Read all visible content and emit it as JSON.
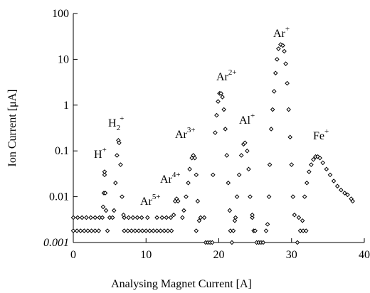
{
  "chart_data": {
    "type": "scatter",
    "xlabel": "Analysing Magnet Current [A]",
    "ylabel": "Ion Current [μA]",
    "ylog": true,
    "xlim": [
      0,
      40
    ],
    "ylim": [
      0.001,
      100
    ],
    "xticks": [
      0,
      10,
      20,
      30,
      40
    ],
    "yticks": [
      0.001,
      0.01,
      0.1,
      1,
      10,
      100
    ],
    "color": "#000000",
    "annotations": [
      {
        "text": "H",
        "sup": "+"
      },
      {
        "text": "H",
        "sub": "2",
        "sup": "+"
      },
      {
        "text": "Ar",
        "sup": "5+"
      },
      {
        "text": "Ar",
        "sup": "4+"
      },
      {
        "text": "Ar",
        "sup": "3+"
      },
      {
        "text": "Ar",
        "sup": "2+"
      },
      {
        "text": "Al",
        "sup": "+"
      },
      {
        "text": "Ar",
        "sup": "+"
      },
      {
        "text": "Fe",
        "sup": "+"
      }
    ],
    "x": [
      0,
      0.5,
      1,
      1.5,
      2,
      2.5,
      3,
      3.5,
      4.7,
      7,
      7.5,
      8,
      8.5,
      9,
      9.5,
      10,
      10.5,
      11,
      11.5,
      12,
      12.5,
      13,
      13.5,
      16.9,
      21.6,
      22,
      24.8,
      25,
      26.5,
      31.2,
      31.6,
      32,
      0,
      0.6,
      1.2,
      1.8,
      2.4,
      3,
      3.6,
      5,
      5.4,
      7,
      7.6,
      8.2,
      8.8,
      9.4,
      10.2,
      11.5,
      12.2,
      12.8,
      13.4,
      15,
      17.5,
      18,
      22.3,
      24.6,
      31,
      18.2,
      18.5,
      18.8,
      19.1,
      21.8,
      25.2,
      25.5,
      25.8,
      26.1,
      30.8,
      4.0,
      4.1,
      4.2,
      4.3,
      4.3,
      4.4,
      4.5,
      5.6,
      5.8,
      6.0,
      6.2,
      6.3,
      6.5,
      6.7,
      6.9,
      13.8,
      14.0,
      14.2,
      14.4,
      15.2,
      15.5,
      15.8,
      16.0,
      16.3,
      16.5,
      16.7,
      16.9,
      17.1,
      17.3,
      19.2,
      19.5,
      19.7,
      19.9,
      20.1,
      20.3,
      20.5,
      20.7,
      20.9,
      21.1,
      21.3,
      21.5,
      22.2,
      22.5,
      22.8,
      23.1,
      23.4,
      23.6,
      23.9,
      24.1,
      24.3,
      24.6,
      26.7,
      26.9,
      27.0,
      27.2,
      27.4,
      27.6,
      27.8,
      28.0,
      28.2,
      28.5,
      28.8,
      29.0,
      29.2,
      29.4,
      29.6,
      29.8,
      30.0,
      30.2,
      30.4,
      31.5,
      31.8,
      32.1,
      32.4,
      32.7,
      33.0,
      33.3,
      33.6,
      33.9,
      34.3,
      34.8,
      35.3,
      35.8,
      36.3,
      36.8,
      37.3,
      37.7,
      38.2,
      38.4
    ],
    "values": [
      0.0018,
      0.0018,
      0.0018,
      0.0018,
      0.0018,
      0.0018,
      0.0018,
      0.0018,
      0.0018,
      0.0018,
      0.0018,
      0.0018,
      0.0018,
      0.0018,
      0.0018,
      0.0018,
      0.0018,
      0.0018,
      0.0018,
      0.0018,
      0.0018,
      0.0018,
      0.0018,
      0.0018,
      0.0018,
      0.0018,
      0.0018,
      0.0018,
      0.0018,
      0.0018,
      0.0018,
      0.0018,
      0.0035,
      0.0035,
      0.0035,
      0.0035,
      0.0035,
      0.0035,
      0.0035,
      0.0035,
      0.0035,
      0.0035,
      0.0035,
      0.0035,
      0.0035,
      0.0035,
      0.0035,
      0.0035,
      0.0035,
      0.0035,
      0.0035,
      0.0035,
      0.0035,
      0.0035,
      0.0035,
      0.0035,
      0.0035,
      0.001,
      0.001,
      0.001,
      0.001,
      0.001,
      0.001,
      0.001,
      0.001,
      0.001,
      0.001,
      0.0035,
      0.006,
      0.012,
      0.03,
      0.035,
      0.012,
      0.005,
      0.005,
      0.02,
      0.08,
      0.17,
      0.15,
      0.05,
      0.01,
      0.004,
      0.004,
      0.008,
      0.009,
      0.008,
      0.005,
      0.01,
      0.02,
      0.04,
      0.07,
      0.08,
      0.07,
      0.03,
      0.008,
      0.003,
      0.03,
      0.25,
      0.6,
      1.2,
      1.8,
      1.8,
      1.5,
      0.8,
      0.3,
      0.08,
      0.02,
      0.005,
      0.003,
      0.01,
      0.03,
      0.08,
      0.14,
      0.15,
      0.1,
      0.04,
      0.01,
      0.004,
      0.0025,
      0.01,
      0.05,
      0.3,
      0.8,
      2,
      5,
      10,
      17,
      21,
      20,
      15,
      8,
      3,
      0.8,
      0.2,
      0.05,
      0.01,
      0.004,
      0.003,
      0.01,
      0.02,
      0.035,
      0.05,
      0.065,
      0.075,
      0.075,
      0.07,
      0.055,
      0.04,
      0.03,
      0.022,
      0.017,
      0.014,
      0.012,
      0.011,
      0.009,
      0.008
    ]
  }
}
